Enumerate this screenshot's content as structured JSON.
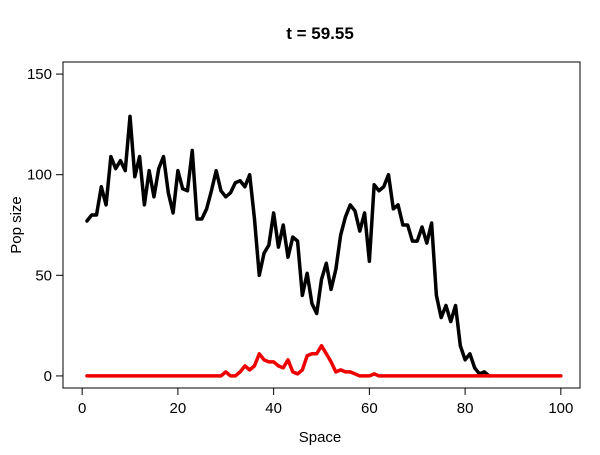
{
  "chart_data": {
    "type": "line",
    "title": "t = 59.55",
    "xlabel": "Space",
    "ylabel": "Pop size",
    "xlim": [
      -4,
      104
    ],
    "ylim": [
      -6,
      156
    ],
    "xticks": [
      0,
      20,
      40,
      60,
      80,
      100
    ],
    "yticks": [
      0,
      50,
      100,
      150
    ],
    "grid": false,
    "series": [
      {
        "color": "#000000",
        "x": [
          1,
          2,
          3,
          4,
          5,
          6,
          7,
          8,
          9,
          10,
          11,
          12,
          13,
          14,
          15,
          16,
          17,
          18,
          19,
          20,
          21,
          22,
          23,
          24,
          25,
          26,
          27,
          28,
          29,
          30,
          31,
          32,
          33,
          34,
          35,
          36,
          37,
          38,
          39,
          40,
          41,
          42,
          43,
          44,
          45,
          46,
          47,
          48,
          49,
          50,
          51,
          52,
          53,
          54,
          55,
          56,
          57,
          58,
          59,
          60,
          61,
          62,
          63,
          64,
          65,
          66,
          67,
          68,
          69,
          70,
          71,
          72,
          73,
          74,
          75,
          76,
          77,
          78,
          79,
          80,
          81,
          82,
          83,
          84,
          85
        ],
        "y": [
          77,
          80,
          80,
          94,
          85,
          109,
          103,
          107,
          102,
          129,
          99,
          109,
          85,
          102,
          89,
          103,
          109,
          91,
          81,
          102,
          93,
          92,
          112,
          78,
          78,
          83,
          92,
          102,
          92,
          89,
          91,
          96,
          97,
          94,
          100,
          78,
          50,
          61,
          65,
          81,
          64,
          75,
          59,
          69,
          67,
          40,
          51,
          36,
          31,
          48,
          56,
          43,
          53,
          70,
          79,
          85,
          82,
          72,
          81,
          57,
          95,
          92,
          94,
          100,
          83,
          85,
          75,
          75,
          67,
          67,
          74,
          66,
          76,
          40,
          29,
          35,
          27,
          35,
          15,
          8,
          11,
          4,
          1,
          2,
          0
        ]
      },
      {
        "color": "#ee0000",
        "x": [
          1,
          2,
          3,
          4,
          5,
          6,
          7,
          8,
          9,
          10,
          11,
          12,
          13,
          14,
          15,
          16,
          17,
          18,
          19,
          20,
          21,
          22,
          23,
          24,
          25,
          26,
          27,
          28,
          29,
          30,
          31,
          32,
          33,
          34,
          35,
          36,
          37,
          38,
          39,
          40,
          41,
          42,
          43,
          44,
          45,
          46,
          47,
          48,
          49,
          50,
          51,
          52,
          53,
          54,
          55,
          56,
          57,
          58,
          59,
          60,
          61,
          62,
          63,
          64,
          65,
          66,
          67,
          68,
          69,
          70,
          71,
          72,
          73,
          74,
          75,
          76,
          77,
          78,
          79,
          80,
          81,
          82,
          83,
          84,
          85,
          86,
          87,
          88,
          89,
          90,
          91,
          92,
          93,
          94,
          95,
          96,
          97,
          98,
          99,
          100
        ],
        "y": [
          0,
          0,
          0,
          0,
          0,
          0,
          0,
          0,
          0,
          0,
          0,
          0,
          0,
          0,
          0,
          0,
          0,
          0,
          0,
          0,
          0,
          0,
          0,
          0,
          0,
          0,
          0,
          0,
          0,
          2,
          0,
          0,
          2,
          5,
          3,
          5,
          11,
          8,
          7,
          7,
          5,
          4,
          8,
          2,
          1,
          3,
          10,
          11,
          11,
          15,
          11,
          7,
          2,
          3,
          2,
          2,
          1,
          0,
          0,
          0,
          1,
          0,
          0,
          0,
          0,
          0,
          0,
          0,
          0,
          0,
          0,
          0,
          0,
          0,
          0,
          0,
          0,
          0,
          0,
          0,
          0,
          0,
          0,
          0,
          0,
          0,
          0,
          0,
          0,
          0,
          0,
          0,
          0,
          0,
          0,
          0,
          0,
          0,
          0,
          0
        ]
      }
    ]
  }
}
